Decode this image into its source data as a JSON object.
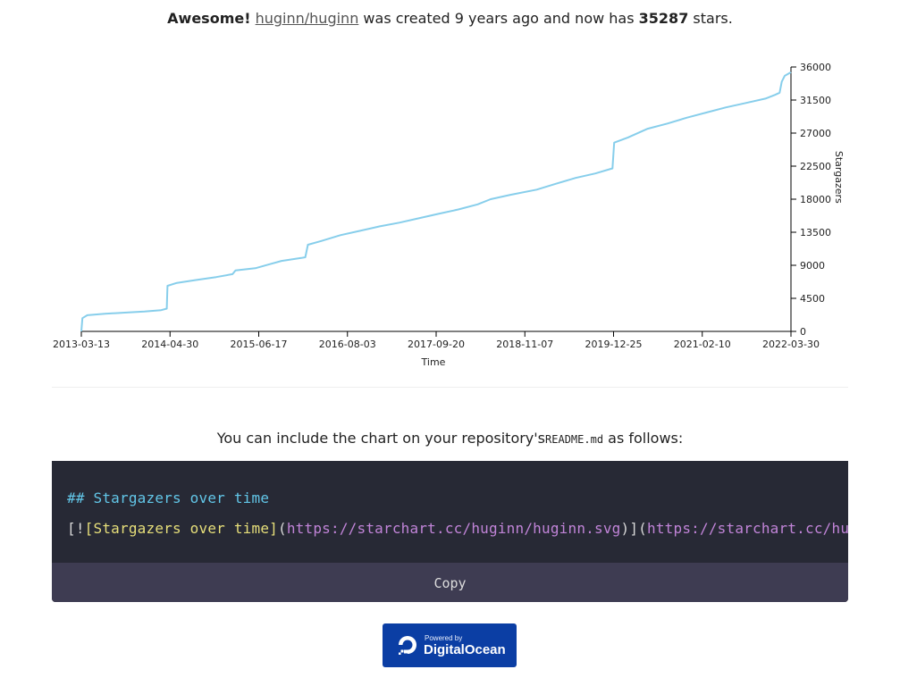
{
  "header": {
    "prefix": "Awesome!",
    "repo": "huginn/huginn",
    "middle": "was created 9 years ago and now has",
    "stars": "35287",
    "suffix": "stars."
  },
  "chart_data": {
    "type": "line",
    "title": "",
    "xlabel": "Time",
    "ylabel": "Stargazers",
    "x_ticks": [
      "2013-03-13",
      "2014-04-30",
      "2015-06-17",
      "2016-08-03",
      "2017-09-20",
      "2018-11-07",
      "2019-12-25",
      "2021-02-10",
      "2022-03-30"
    ],
    "y_ticks": [
      0,
      4500,
      9000,
      13500,
      18000,
      22500,
      27000,
      31500,
      36000
    ],
    "ylim": [
      0,
      36000
    ],
    "xlim": [
      "2013-03-13",
      "2022-03-30"
    ],
    "y_axis_side": "right",
    "grid": false,
    "line_color": "#87ceeb",
    "series": [
      {
        "points": [
          [
            "2013-03-13",
            0
          ],
          [
            "2013-03-18",
            1800
          ],
          [
            "2013-04-10",
            2200
          ],
          [
            "2013-07-01",
            2400
          ],
          [
            "2013-10-01",
            2550
          ],
          [
            "2014-01-01",
            2700
          ],
          [
            "2014-03-20",
            2900
          ],
          [
            "2014-04-15",
            3100
          ],
          [
            "2014-04-18",
            6200
          ],
          [
            "2014-06-01",
            6600
          ],
          [
            "2014-09-01",
            7000
          ],
          [
            "2014-12-01",
            7400
          ],
          [
            "2015-02-15",
            7800
          ],
          [
            "2015-03-01",
            8300
          ],
          [
            "2015-06-01",
            8600
          ],
          [
            "2015-08-01",
            9100
          ],
          [
            "2015-10-01",
            9600
          ],
          [
            "2016-01-01",
            10000
          ],
          [
            "2016-01-20",
            10100
          ],
          [
            "2016-02-01",
            11800
          ],
          [
            "2016-04-01",
            12300
          ],
          [
            "2016-07-01",
            13100
          ],
          [
            "2016-10-01",
            13700
          ],
          [
            "2017-01-01",
            14300
          ],
          [
            "2017-04-01",
            14800
          ],
          [
            "2017-07-01",
            15400
          ],
          [
            "2017-10-01",
            16000
          ],
          [
            "2018-01-01",
            16600
          ],
          [
            "2018-04-01",
            17300
          ],
          [
            "2018-06-01",
            18000
          ],
          [
            "2018-09-01",
            18600
          ],
          [
            "2019-01-01",
            19300
          ],
          [
            "2019-04-01",
            20100
          ],
          [
            "2019-07-01",
            20900
          ],
          [
            "2019-10-01",
            21500
          ],
          [
            "2019-12-20",
            22200
          ],
          [
            "2019-12-28",
            25700
          ],
          [
            "2020-03-01",
            26400
          ],
          [
            "2020-06-01",
            27600
          ],
          [
            "2020-09-01",
            28300
          ],
          [
            "2020-12-01",
            29100
          ],
          [
            "2021-03-01",
            29800
          ],
          [
            "2021-06-01",
            30500
          ],
          [
            "2021-09-01",
            31100
          ],
          [
            "2021-12-01",
            31700
          ],
          [
            "2022-01-15",
            32200
          ],
          [
            "2022-02-05",
            32500
          ],
          [
            "2022-02-15",
            34000
          ],
          [
            "2022-03-01",
            34800
          ],
          [
            "2022-03-30",
            35287
          ]
        ]
      }
    ]
  },
  "include": {
    "before": "You can include the chart on your repository's",
    "file": "README.md",
    "after": "as follows:"
  },
  "code": {
    "line1": "## Stargazers over time",
    "line2_open": "[!",
    "line2_alt": "[Stargazers over time]",
    "line2_paren_open": "(",
    "line2_img": "https://starchart.cc/huginn/huginn.svg",
    "line2_mid": ")](",
    "line2_link": "https://starchart.cc/huginn/huginn"
  },
  "copy_label": "Copy",
  "badge": {
    "small": "Powered by",
    "big": "DigitalOcean"
  }
}
